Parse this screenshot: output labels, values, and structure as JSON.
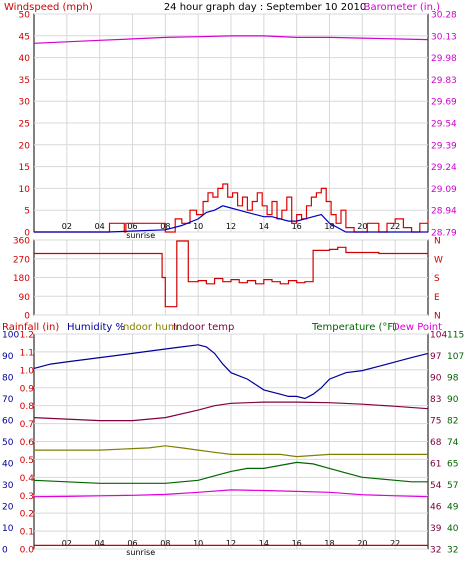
{
  "header": {
    "title": "24 hour graph day : September 10 2010",
    "left_label": "Windspeed (mph)",
    "right_label": "Barometer (in.)"
  },
  "colors": {
    "background": "#ffffff",
    "grid": "#d8d8d8",
    "frame": "#000000",
    "windspeed": "#e00000",
    "wind_avg": "#0000c0",
    "barometer": "#d000d0",
    "direction": "#d00000",
    "rain": "#d00000",
    "humidity": "#000099",
    "indoor_hum": "#808000",
    "indoor_temp": "#800040",
    "temperature": "#006600",
    "dewpoint": "#e000e0"
  },
  "x_axis": {
    "range": [
      0,
      24
    ],
    "tick_labels": [
      "02",
      "04",
      "06",
      "08",
      "10",
      "12",
      "14",
      "16",
      "18",
      "20",
      "22"
    ],
    "tick_values": [
      2,
      4,
      6,
      8,
      10,
      12,
      14,
      16,
      18,
      20,
      22
    ],
    "sunrise_label": "sunrise",
    "sunrise_hour": 6.5
  },
  "panels": {
    "wind": {
      "left_ticks": [
        "50",
        "45",
        "40",
        "35",
        "30",
        "25",
        "20",
        "15",
        "10",
        "5",
        "0"
      ],
      "right_ticks": [
        "30.28",
        "30.13",
        "29.98",
        "29.83",
        "29.69",
        "29.54",
        "29.39",
        "29.24",
        "29.09",
        "28.94",
        "28.79"
      ]
    },
    "direction": {
      "left_ticks": [
        "360",
        "270",
        "180",
        "90",
        "0"
      ],
      "right_ticks": [
        "N",
        "W",
        "S",
        "E",
        "N"
      ]
    },
    "climate": {
      "legend": {
        "rainfall": "Rainfall (in)",
        "humidity": "Humidity %",
        "indoor_hum": "Indoor hum",
        "indoor_temp": "Indoor temp",
        "temperature": "Temperature (°F)",
        "dewpoint": "Dew Point"
      },
      "rain_ticks": [
        "1.2",
        "1.1",
        "1.0",
        "0.9",
        "0.8",
        "0.7",
        "0.6",
        "0.5",
        "0.4",
        "0.3",
        "0.2",
        "0.1",
        "0.0"
      ],
      "humidity_ticks": [
        "100",
        "90",
        "80",
        "70",
        "60",
        "50",
        "40",
        "30",
        "20",
        "10",
        "0"
      ],
      "temp_ticks_outer": [
        "115",
        "107",
        "98",
        "90",
        "82",
        "74",
        "65",
        "57",
        "49",
        "40",
        "32"
      ],
      "temp_ticks_inner": [
        "104",
        "97",
        "90",
        "83",
        "75",
        "68",
        "61",
        "54",
        "46",
        "39",
        "32"
      ]
    }
  },
  "chart_data": [
    {
      "type": "line",
      "title": "24 hour graph day : September 10 2010",
      "xlabel": "",
      "ylabel": "Windspeed (mph)",
      "y2label": "Barometer (in.)",
      "xlim": [
        0,
        24
      ],
      "ylim": [
        0,
        50
      ],
      "y2lim": [
        28.79,
        30.28
      ],
      "series": [
        {
          "name": "Windspeed (mph)",
          "axis": "left",
          "x": [
            0,
            4.5,
            4.6,
            5.5,
            5.6,
            7.5,
            8.0,
            8.6,
            9.0,
            9.5,
            9.9,
            10.3,
            10.6,
            10.9,
            11.2,
            11.5,
            11.8,
            12.1,
            12.4,
            12.7,
            13.0,
            13.3,
            13.6,
            13.9,
            14.2,
            14.5,
            14.8,
            15.1,
            15.4,
            15.7,
            16.0,
            16.3,
            16.6,
            16.9,
            17.2,
            17.5,
            17.8,
            18.1,
            18.4,
            18.7,
            19.0,
            19.5,
            20.3,
            21.0,
            21.5,
            22.0,
            22.5,
            23.0,
            23.5,
            24
          ],
          "y": [
            0,
            0,
            2,
            0,
            2,
            2,
            0,
            3,
            2,
            5,
            4,
            7,
            9,
            8,
            10,
            11,
            8,
            9,
            6,
            8,
            5,
            7,
            9,
            6,
            4,
            7,
            3,
            5,
            8,
            2,
            4,
            3,
            6,
            8,
            9,
            10,
            7,
            4,
            2,
            5,
            1,
            0,
            2,
            0,
            2,
            3,
            1,
            0,
            2,
            3
          ]
        },
        {
          "name": "Wind average",
          "axis": "left",
          "x": [
            0,
            4.5,
            8.0,
            9.0,
            10.0,
            10.5,
            11.0,
            11.5,
            12.0,
            12.5,
            13.0,
            13.5,
            14.0,
            14.5,
            15.0,
            15.5,
            16.0,
            16.5,
            17.0,
            17.5,
            18.0,
            18.5,
            19.0,
            24
          ],
          "y": [
            0,
            0,
            0.5,
            1.5,
            3,
            4.5,
            5,
            6,
            5.5,
            5,
            4.5,
            4,
            3.5,
            3.5,
            3,
            2.5,
            2.5,
            3,
            3.5,
            4,
            2,
            1,
            0,
            0
          ]
        },
        {
          "name": "Barometer (in.)",
          "axis": "right",
          "x": [
            0,
            2,
            4,
            6,
            8,
            10,
            12,
            14,
            16,
            18,
            20,
            22,
            24
          ],
          "y": [
            30.08,
            30.09,
            30.1,
            30.11,
            30.12,
            30.125,
            30.13,
            30.13,
            30.12,
            30.12,
            30.115,
            30.11,
            30.105
          ]
        }
      ]
    },
    {
      "type": "line",
      "title": "",
      "xlabel": "",
      "ylabel": "",
      "y2label": "",
      "xlim": [
        0,
        24
      ],
      "ylim": [
        0,
        360
      ],
      "series": [
        {
          "name": "Wind direction",
          "axis": "left",
          "x": [
            0,
            7.8,
            7.8,
            8.0,
            8.0,
            8.7,
            8.7,
            9.4,
            9.4,
            10.0,
            10.5,
            11.0,
            11.5,
            12.0,
            12.5,
            13.0,
            13.5,
            14.0,
            14.5,
            15.0,
            15.5,
            16.0,
            16.5,
            17.0,
            17.0,
            18.0,
            18.5,
            19.0,
            21.0,
            21.0,
            24
          ],
          "y": [
            295,
            295,
            180,
            180,
            40,
            40,
            355,
            355,
            160,
            165,
            150,
            175,
            160,
            170,
            155,
            165,
            150,
            170,
            160,
            150,
            165,
            155,
            160,
            170,
            310,
            315,
            325,
            300,
            300,
            295,
            290
          ]
        }
      ]
    },
    {
      "type": "line",
      "title": "",
      "xlabel": "",
      "ylabel": "Rainfall (in)",
      "y2label": "Temperature (°F)",
      "xlim": [
        0,
        24
      ],
      "ylim": [
        0,
        1.2
      ],
      "series": [
        {
          "name": "Rainfall (in)",
          "axis": "rain",
          "x": [
            0,
            24
          ],
          "y": [
            0.02,
            0.02
          ]
        },
        {
          "name": "Humidity %",
          "axis": "humidity",
          "x": [
            0,
            1,
            2,
            4,
            6,
            8,
            9,
            10,
            10.5,
            11,
            11.5,
            12,
            13,
            14,
            15,
            15.5,
            16,
            16.5,
            17,
            17.5,
            18,
            19,
            20,
            21,
            22,
            23,
            24
          ],
          "y": [
            84,
            86,
            87,
            89,
            91,
            93,
            94,
            95,
            94,
            91,
            86,
            82,
            79,
            74,
            72,
            71,
            71,
            70,
            72,
            75,
            79,
            82,
            83,
            85,
            87,
            89,
            91
          ]
        },
        {
          "name": "Indoor hum",
          "axis": "humidity",
          "x": [
            0,
            4,
            7,
            8,
            9,
            10,
            11,
            12,
            14,
            15,
            16,
            18,
            20,
            22,
            24
          ],
          "y": [
            46,
            46,
            47,
            48,
            47,
            46,
            45,
            44,
            44,
            44,
            43,
            44,
            44,
            44,
            44
          ]
        },
        {
          "name": "Indoor temp",
          "axis": "temp",
          "x": [
            0,
            2,
            4,
            6,
            8,
            10,
            11,
            12,
            14,
            16,
            18,
            20,
            22,
            24
          ],
          "y": [
            76.0,
            75.5,
            75.0,
            75.0,
            76.0,
            78.5,
            80.0,
            80.8,
            81.2,
            81.2,
            81.0,
            80.5,
            79.8,
            79.0
          ]
        },
        {
          "name": "Temperature (°F)",
          "axis": "temp",
          "x": [
            0,
            2,
            4,
            6,
            8,
            10,
            11,
            12,
            13,
            14,
            15,
            16,
            17,
            18,
            19,
            20,
            21,
            22,
            23,
            24
          ],
          "y": [
            55.0,
            54.5,
            54.0,
            54.0,
            54.0,
            55.0,
            56.5,
            58.0,
            59.0,
            59.0,
            60.0,
            61.0,
            60.5,
            59.0,
            57.5,
            56.0,
            55.5,
            55.0,
            54.5,
            54.5
          ]
        },
        {
          "name": "Dew Point",
          "axis": "temp",
          "x": [
            0,
            2,
            4,
            6,
            8,
            10,
            12,
            14,
            16,
            18,
            20,
            22,
            24
          ],
          "y": [
            49.5,
            49.6,
            49.8,
            50.0,
            50.3,
            51.0,
            51.8,
            51.6,
            51.3,
            51.0,
            50.2,
            49.8,
            49.5
          ]
        }
      ]
    }
  ]
}
